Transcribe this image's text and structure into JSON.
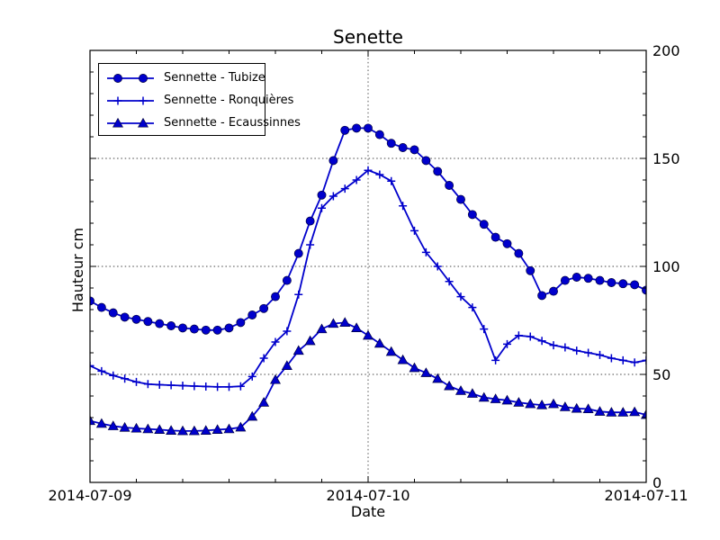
{
  "figure": {
    "title": "Senette",
    "xlabel": "Date",
    "ylabel": "Hauteur cm"
  },
  "chart_data": {
    "type": "line",
    "title": "Senette",
    "xlabel": "Date",
    "ylabel": "Hauteur cm",
    "ylim": [
      0,
      200
    ],
    "yticks_major": [
      0,
      50,
      100,
      150,
      200
    ],
    "ytick_labels": [
      "0",
      "50",
      "100",
      "150",
      "200"
    ],
    "y_minor_step": 10,
    "x_span_hours": 48,
    "x_step_hours": 1,
    "xticks_major_hours": [
      0,
      24,
      48
    ],
    "xtick_labels": [
      "2014-07-09",
      "2014-07-10",
      "2014-07-11"
    ],
    "x_minor_step_hours": 4,
    "grid": {
      "horizontal_at": [
        50,
        100,
        150
      ],
      "vertical_at_hours": [
        24
      ],
      "style": "dotted"
    },
    "legend_position": "upper left",
    "series_color": "#0000cc",
    "series": [
      {
        "name": "Sennette - Tubize",
        "marker": "circle",
        "values": [
          84,
          81,
          78.5,
          76.5,
          75.5,
          74.5,
          73.5,
          72.5,
          71.5,
          71,
          70.5,
          70.5,
          71.5,
          74,
          77.5,
          80.5,
          86,
          93.5,
          106,
          121,
          133,
          149,
          163,
          164,
          164,
          161,
          157,
          155,
          154,
          149,
          144,
          137.5,
          131,
          124,
          119.5,
          113.5,
          110.5,
          106,
          98,
          86.5,
          88.5,
          93.5,
          95,
          94.5,
          93.5,
          92.5,
          92,
          91.5,
          89
        ]
      },
      {
        "name": "Sennette - Ronquières",
        "marker": "plus",
        "values": [
          54,
          51.5,
          49.5,
          48,
          46.5,
          45.5,
          45.2,
          45,
          44.8,
          44.6,
          44.4,
          44.2,
          44.2,
          44.5,
          49,
          57.5,
          65,
          70,
          87,
          110,
          127,
          132.5,
          136,
          140,
          144.5,
          142.5,
          139.5,
          128,
          116.5,
          106.5,
          100,
          93,
          86,
          81,
          71,
          56.5,
          64,
          68,
          67.5,
          65.5,
          63.5,
          62.5,
          61,
          60,
          59,
          57.5,
          56.5,
          55.5,
          56.5
        ]
      },
      {
        "name": "Sennette - Ecaussinnes",
        "marker": "triangle",
        "values": [
          28.5,
          27.2,
          26.1,
          25.4,
          25,
          24.7,
          24.4,
          24,
          23.8,
          23.8,
          24,
          24.4,
          24.7,
          25.5,
          30.5,
          37,
          47.5,
          54,
          61,
          65.5,
          71,
          73.5,
          74,
          71.5,
          68,
          64.3,
          60.5,
          56.7,
          53,
          50.7,
          48,
          44.6,
          42.4,
          41.1,
          39.3,
          38.6,
          38,
          37,
          36.3,
          35.8,
          36.3,
          34.9,
          34.2,
          34,
          32.8,
          32.4,
          32.4,
          32.6,
          31.3
        ]
      }
    ]
  }
}
